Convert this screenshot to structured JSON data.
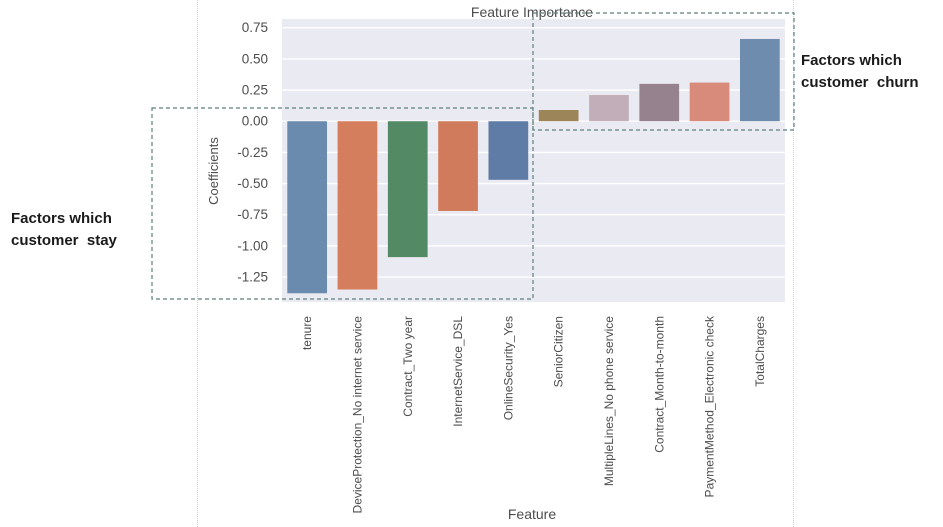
{
  "chart_data": {
    "type": "bar",
    "title": "Feature Importance",
    "xlabel": "Feature",
    "ylabel": "Coefficients",
    "categories": [
      "tenure",
      "DeviceProtection_No internet service",
      "Contract_Two year",
      "InternetService_DSL",
      "OnlineSecurity_Yes",
      "SeniorCitizen",
      "MultipleLines_No phone service",
      "Contract_Month-to-month",
      "PaymentMethod_Electronic check",
      "TotalCharges"
    ],
    "values": [
      -1.38,
      -1.35,
      -1.09,
      -0.72,
      -0.47,
      0.09,
      0.21,
      0.3,
      0.31,
      0.66
    ],
    "ylim": [
      -1.45,
      0.82
    ],
    "yticks": [
      0.75,
      0.5,
      0.25,
      0.0,
      -0.25,
      -0.5,
      -0.75,
      -1.0,
      -1.25
    ],
    "ytick_labels": [
      "0.75",
      "0.50",
      "0.25",
      "0.00",
      "-0.25",
      "-0.50",
      "-0.75",
      "-1.00",
      "-1.25"
    ],
    "grid": true,
    "colors": [
      "#6b8bae",
      "#d47e5d",
      "#548966",
      "#d07c5c",
      "#5f7ca6",
      "#9c8558",
      "#c2aeb9",
      "#96828f",
      "#d88a7b",
      "#6e8dae"
    ]
  },
  "annotations": {
    "stay": "Factors which\ncustomer  stay",
    "churn": "Factors which\ncustomer  churn"
  },
  "colors": {
    "plot_background": "#eaeaf2",
    "grid": "#ffffff",
    "text": "#4d4d4d",
    "annotation_box": "#5d7f7c"
  }
}
